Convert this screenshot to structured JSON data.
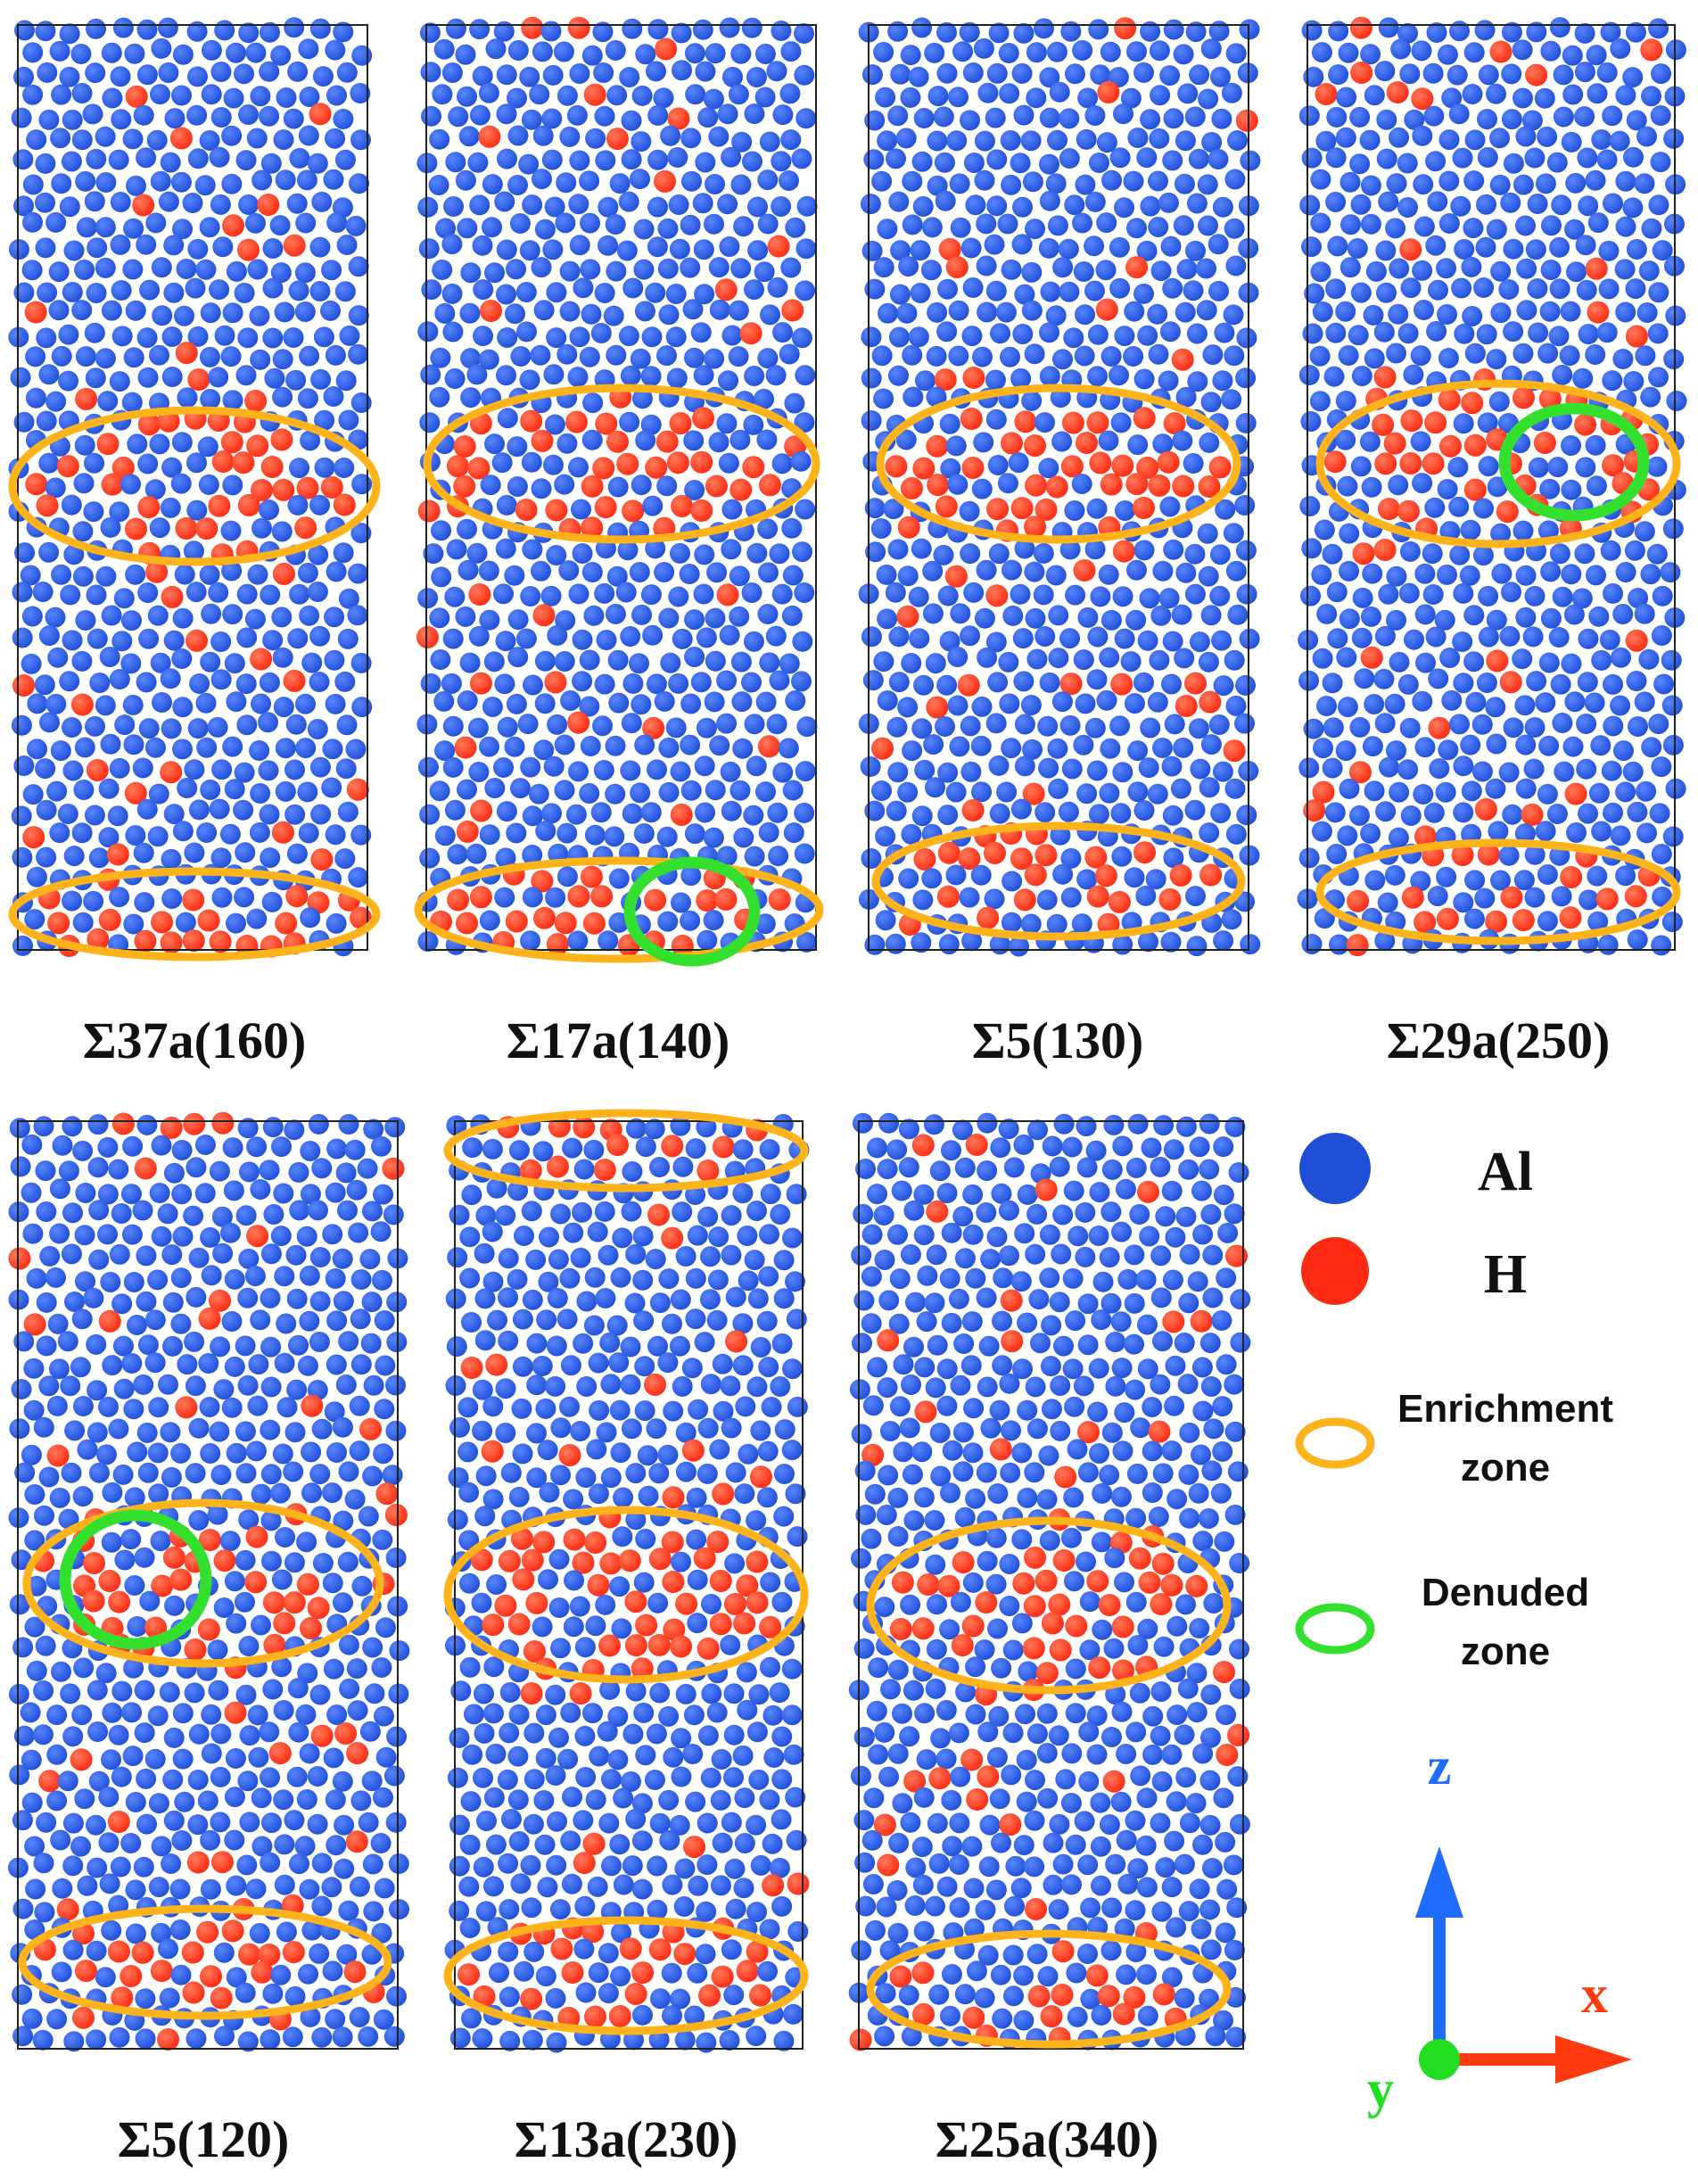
{
  "colors": {
    "al_atom": "#1f4fd6",
    "h_atom": "#ff2a12",
    "enrichment_zone": "#ffb31a",
    "denuded_zone": "#33e02e",
    "axis_x": "#ff3a10",
    "axis_y": "#22dd22",
    "axis_z": "#1f6cff"
  },
  "panels": [
    {
      "label": "Σ37a(160)",
      "zones": [
        {
          "type": "enrichment",
          "row": "middle"
        },
        {
          "type": "enrichment",
          "row": "bottom"
        }
      ]
    },
    {
      "label": "Σ17a(140)",
      "zones": [
        {
          "type": "enrichment",
          "row": "middle"
        },
        {
          "type": "enrichment",
          "row": "bottom"
        },
        {
          "type": "denuded",
          "row": "bottom"
        }
      ]
    },
    {
      "label": "Σ5(130)",
      "zones": [
        {
          "type": "enrichment",
          "row": "middle"
        },
        {
          "type": "enrichment",
          "row": "bottom"
        }
      ]
    },
    {
      "label": "Σ29a(250)",
      "zones": [
        {
          "type": "enrichment",
          "row": "middle"
        },
        {
          "type": "denuded",
          "row": "middle"
        },
        {
          "type": "enrichment",
          "row": "bottom"
        }
      ]
    },
    {
      "label": "Σ5(120)",
      "zones": [
        {
          "type": "enrichment",
          "row": "middle"
        },
        {
          "type": "denuded",
          "row": "middle"
        },
        {
          "type": "enrichment",
          "row": "bottom"
        }
      ]
    },
    {
      "label": "Σ13a(230)",
      "zones": [
        {
          "type": "enrichment",
          "row": "top"
        },
        {
          "type": "enrichment",
          "row": "middle"
        },
        {
          "type": "enrichment",
          "row": "bottom"
        }
      ]
    },
    {
      "label": "Σ25a(340)",
      "zones": [
        {
          "type": "enrichment",
          "row": "middle"
        },
        {
          "type": "enrichment",
          "row": "bottom"
        }
      ]
    }
  ],
  "legend": {
    "al_label": "Al",
    "h_label": "H",
    "enrichment_label_1": "Enrichment",
    "enrichment_label_2": "zone",
    "denuded_label_1": "Denuded",
    "denuded_label_2": "zone"
  },
  "axes": {
    "x_label": "x",
    "y_label": "y",
    "z_label": "z"
  }
}
